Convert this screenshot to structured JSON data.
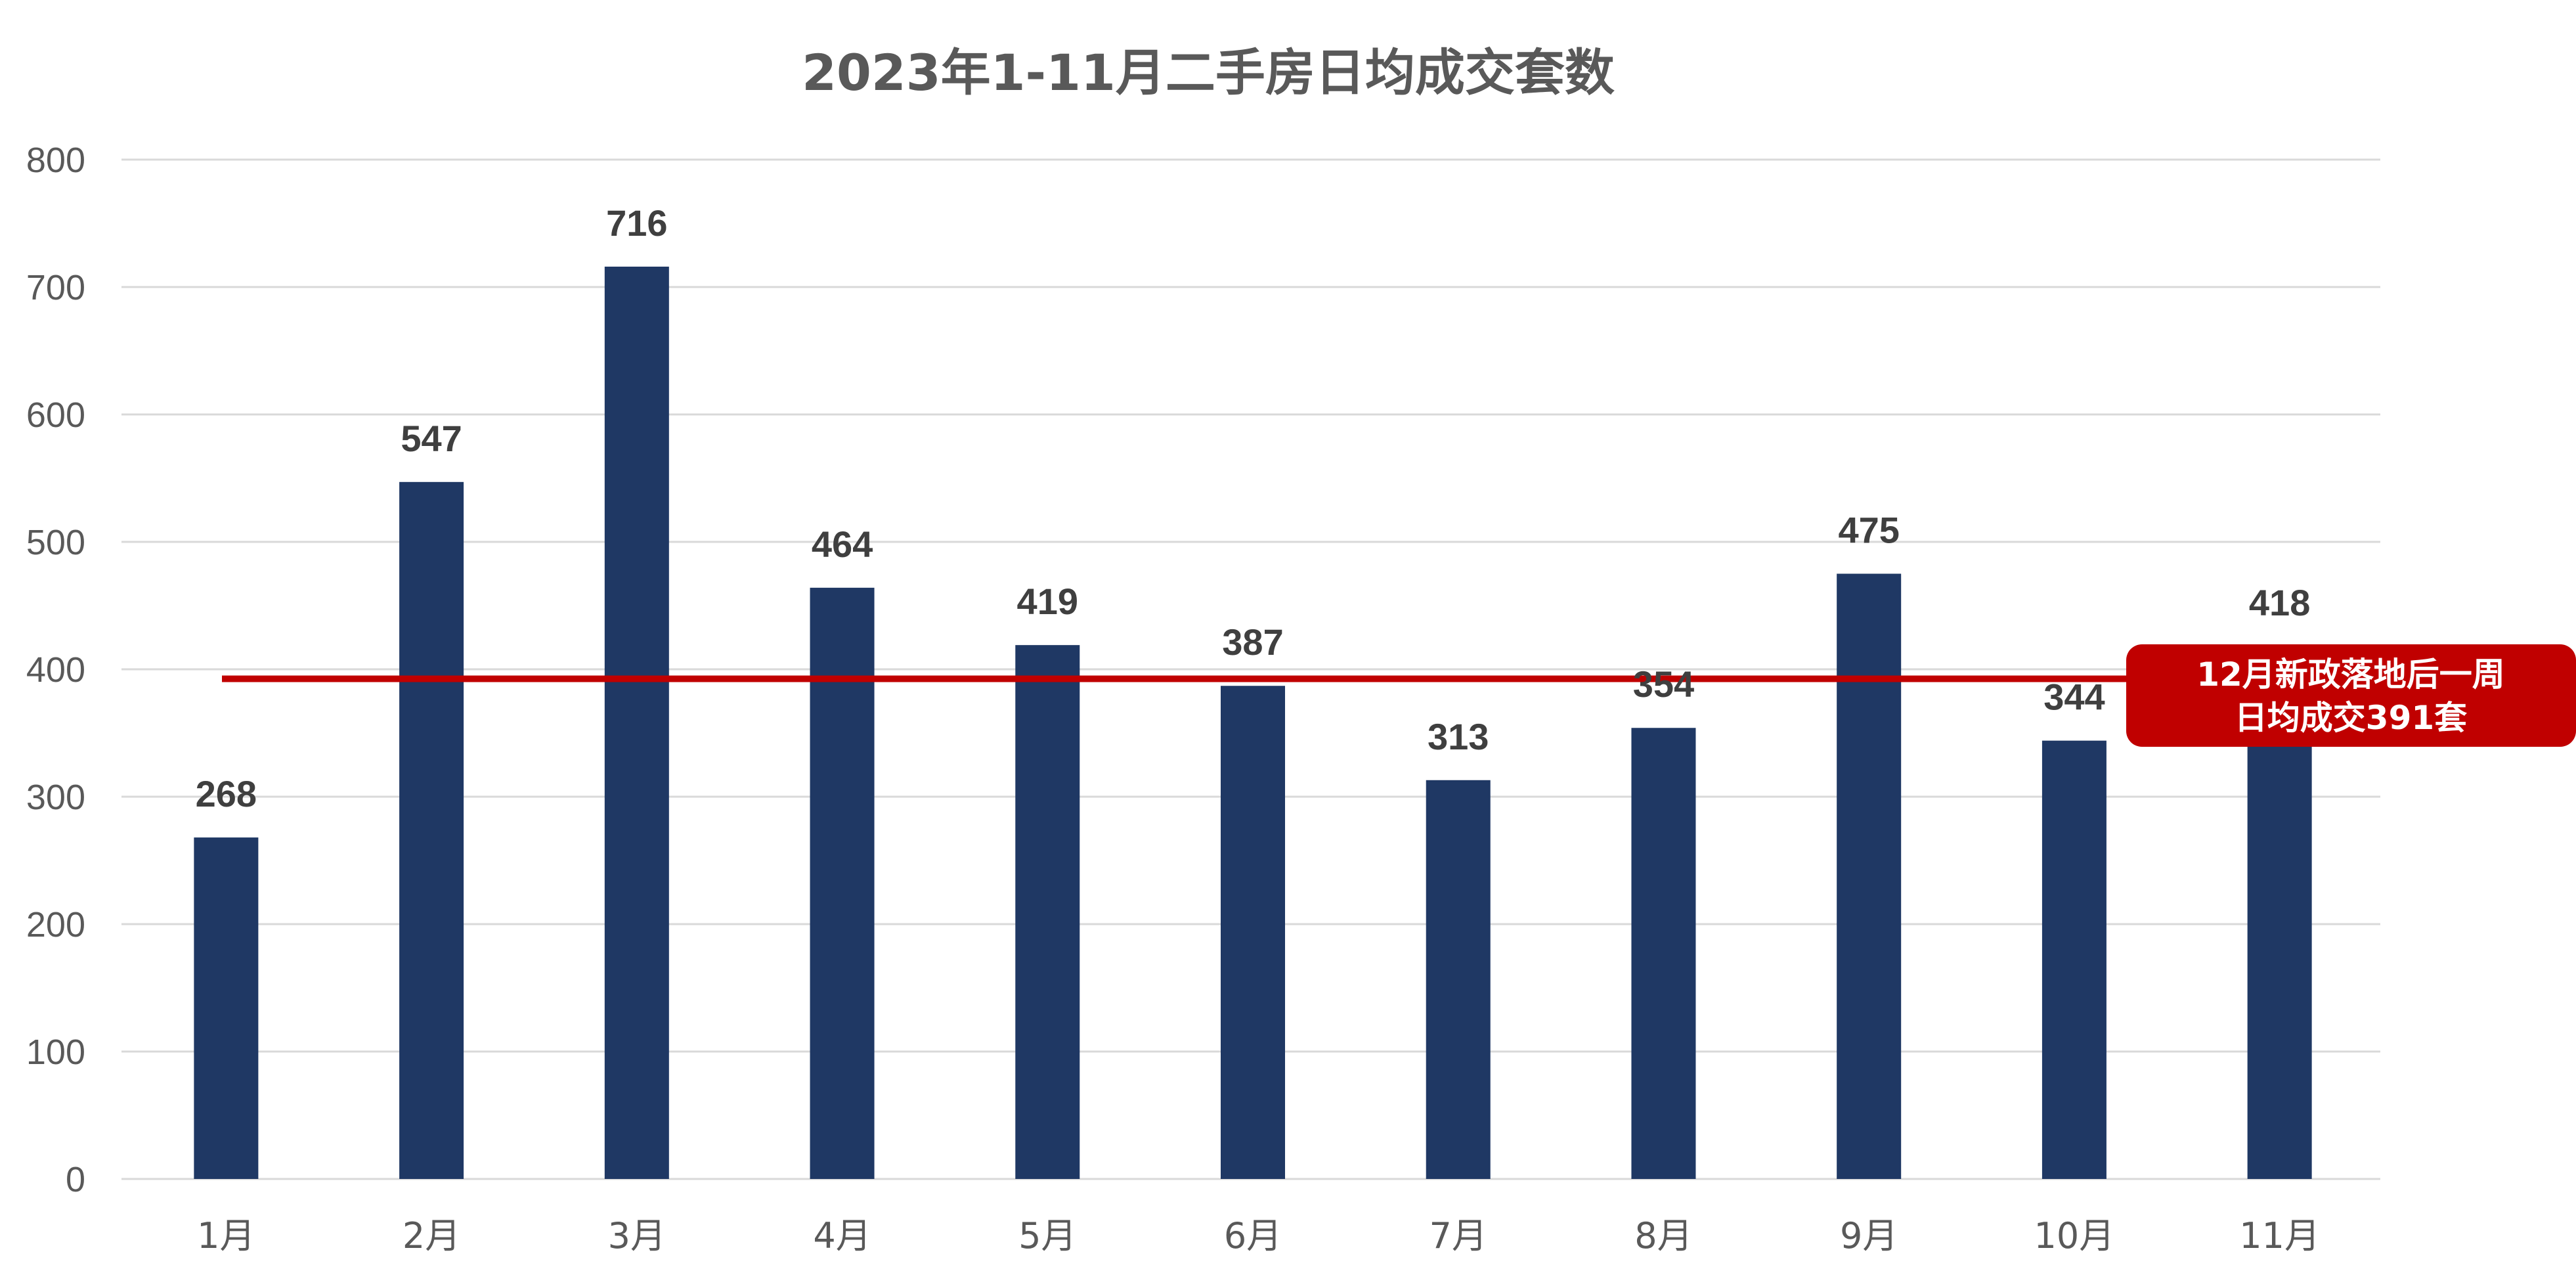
{
  "chart_data": {
    "type": "bar",
    "title": "2023年1-11月二手房日均成交套数",
    "xlabel": "",
    "ylabel": "",
    "categories": [
      "1月",
      "2月",
      "3月",
      "4月",
      "5月",
      "6月",
      "7月",
      "8月",
      "9月",
      "10月",
      "11月"
    ],
    "values": [
      268,
      547,
      716,
      464,
      419,
      387,
      313,
      354,
      475,
      344,
      418
    ],
    "ylim": [
      0,
      800
    ],
    "yticks": [
      0,
      100,
      200,
      300,
      400,
      500,
      600,
      700,
      800
    ],
    "grid": true,
    "reference_line": {
      "value": 391,
      "label_line1": "12月新政落地后一周",
      "label_line2": "日均成交391套"
    },
    "colors": {
      "bar": "#1f3864",
      "reference_line": "#c00000",
      "callout_bg": "#c00000",
      "grid": "#d9d9d9",
      "text": "#595959",
      "data_label": "#3f3f3f"
    }
  }
}
